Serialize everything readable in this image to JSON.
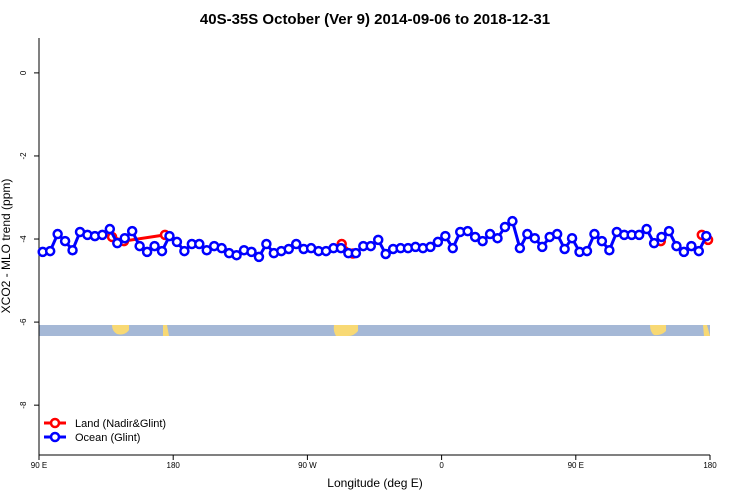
{
  "chart_data": {
    "type": "line",
    "title": "40S-35S October (Ver 9)   2014-09-06 to 2018-12-31",
    "xlabel": "Longitude (deg E)",
    "ylabel": "XCO2 - MLO trend (ppm)",
    "xlim": [
      90,
      540
    ],
    "xticks": [
      {
        "value": 90,
        "label": "90 E"
      },
      180,
      {
        "value": 270,
        "label": "90 W"
      },
      {
        "value": 360,
        "label": "0"
      },
      {
        "value": 450,
        "label": "90 E"
      },
      {
        "value": 540,
        "label": "180"
      }
    ],
    "ylim": [
      -9.2,
      0.84
    ],
    "yticks": [
      0,
      -2,
      -4,
      -6,
      -8
    ],
    "legend": "bottom-left",
    "series": [
      {
        "name": "Land (Nadir&Glint)",
        "color": "#ff0000",
        "x": [
          139,
          147,
          174.5,
          null,
          293,
          300.5,
          null,
          507,
          null,
          534.5,
          538.7
        ],
        "values": [
          -3.95,
          -4.05,
          -3.9,
          null,
          -4.12,
          -4.35,
          null,
          -4.05,
          null,
          -3.9,
          -4.02
        ]
      },
      {
        "name": "Ocean (Glint)",
        "color": "#0000ff",
        "x": [
          92.5,
          97.5,
          102.5,
          107.5,
          112.5,
          117.5,
          122.5,
          127.5,
          132.5,
          137.5,
          142.5,
          147.5,
          152.5,
          157.5,
          162.5,
          167.5,
          172.5,
          177.5,
          182.5,
          187.5,
          192.5,
          197.5,
          202.5,
          207.5,
          212.5,
          217.5,
          222.5,
          227.5,
          232.5,
          237.5,
          242.5,
          247.5,
          252.5,
          257.5,
          262.5,
          267.5,
          272.5,
          277.5,
          282.5,
          287.5,
          292.5,
          297.5,
          302.5,
          307.5,
          312.5,
          317.5,
          322.5,
          327.5,
          332.5,
          337.5,
          342.5,
          347.5,
          352.5,
          357.5,
          362.5,
          367.5,
          372.5,
          377.5,
          382.5,
          387.5,
          392.5,
          397.5,
          402.5,
          407.5,
          412.5,
          417.5,
          422.5,
          427.5,
          432.5,
          437.5,
          442.5,
          447.5,
          452.5,
          457.5,
          462.5,
          467.5,
          472.5,
          477.5,
          482.5,
          487.5,
          492.5,
          497.5,
          502.5,
          507.5,
          512.5,
          517.5,
          522.5,
          527.5,
          532.5,
          537.5
        ],
        "values": [
          -4.31,
          -4.29,
          -3.88,
          -4.05,
          -4.27,
          -3.83,
          -3.9,
          -3.93,
          -3.9,
          -3.76,
          -4.1,
          -3.98,
          -3.81,
          -4.17,
          -4.31,
          -4.17,
          -4.29,
          -3.93,
          -4.07,
          -4.29,
          -4.12,
          -4.12,
          -4.27,
          -4.17,
          -4.22,
          -4.34,
          -4.39,
          -4.27,
          -4.31,
          -4.43,
          -4.12,
          -4.34,
          -4.29,
          -4.24,
          -4.12,
          -4.24,
          -4.22,
          -4.29,
          -4.29,
          -4.22,
          -4.22,
          -4.34,
          -4.34,
          -4.17,
          -4.17,
          -4.02,
          -4.36,
          -4.24,
          -4.22,
          -4.22,
          -4.19,
          -4.22,
          -4.19,
          -4.07,
          -3.93,
          -4.22,
          -3.83,
          -3.81,
          -3.95,
          -4.05,
          -3.88,
          -3.98,
          -3.71,
          -3.57,
          -4.22,
          -3.88,
          -3.98,
          -4.19,
          -3.95,
          -3.88,
          -4.24,
          -3.98,
          -4.31,
          -4.29,
          -3.88,
          -4.05,
          -4.27,
          -3.83,
          -3.9,
          -3.9,
          -3.9,
          -3.76,
          -4.1,
          -3.95,
          -3.81,
          -4.17,
          -4.31,
          -4.17,
          -4.29,
          -3.93
        ]
      }
    ]
  }
}
